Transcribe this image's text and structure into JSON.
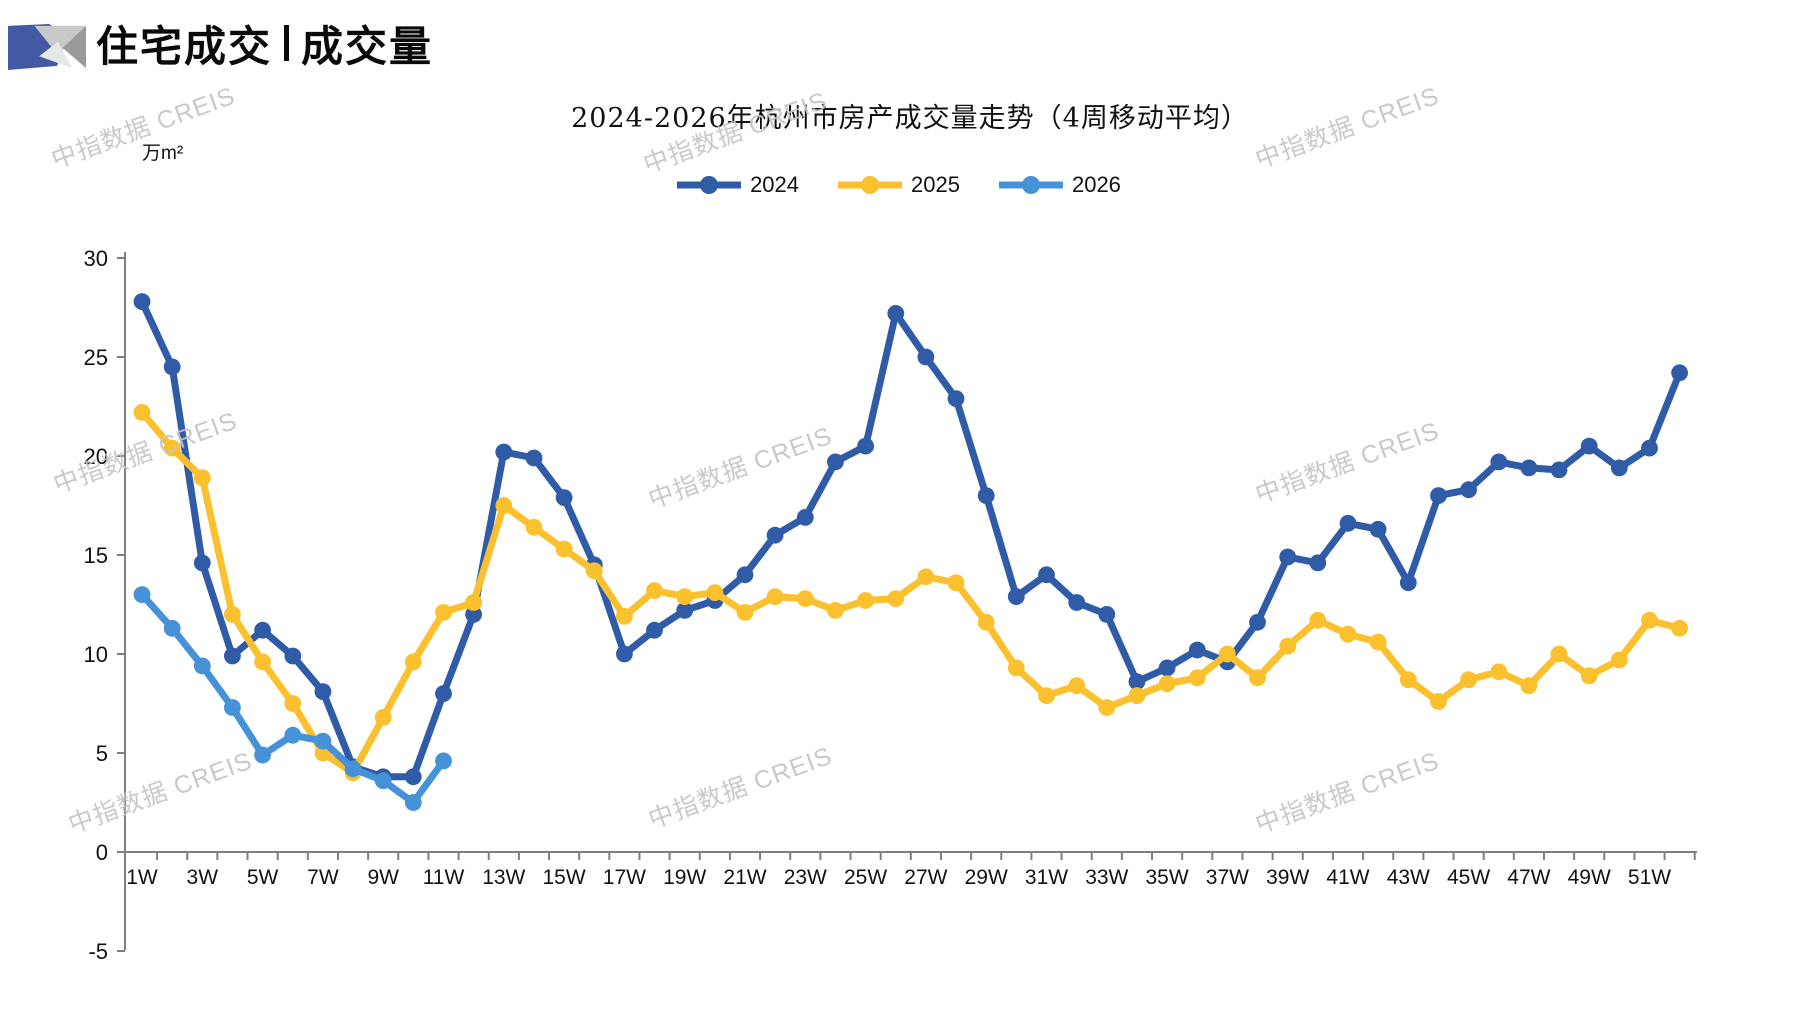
{
  "header": {
    "title_left": "住宅成交",
    "title_right": "成交量",
    "logo_colors": {
      "blue": "#4459A4",
      "gray_light": "#C9C9C9",
      "gray_lighter": "#E7E7E7",
      "gray_dark": "#9A9A9A"
    }
  },
  "watermark_text": "中指数据 CREIS",
  "chart_data": {
    "type": "line",
    "title": "2024-2026年杭州市房产成交量走势（4周移动平均）",
    "unit_label": "万m²",
    "xlabel": "",
    "ylabel": "万m²",
    "ylim": [
      -5,
      30
    ],
    "yticks": [
      "30",
      "25",
      "20",
      "15",
      "10",
      "5",
      "0",
      "-5"
    ],
    "ytick_values": [
      30,
      25,
      20,
      15,
      10,
      5,
      0,
      -5
    ],
    "xticklabels": [
      "1W",
      "3W",
      "5W",
      "7W",
      "9W",
      "11W",
      "13W",
      "15W",
      "17W",
      "19W",
      "21W",
      "23W",
      "25W",
      "27W",
      "29W",
      "31W",
      "33W",
      "35W",
      "37W",
      "39W",
      "41W",
      "43W",
      "45W",
      "47W",
      "49W",
      "51W"
    ],
    "weeks": 52,
    "grid": false,
    "legend_position": "top",
    "series": [
      {
        "name": "2024",
        "color": "#2F5BA7",
        "marker": "circle",
        "values": [
          27.8,
          24.5,
          14.6,
          9.9,
          11.2,
          9.9,
          8.1,
          4.3,
          3.8,
          3.8,
          8.0,
          12.0,
          20.2,
          19.9,
          17.9,
          14.5,
          10.0,
          11.2,
          12.2,
          12.7,
          14.0,
          16.0,
          16.9,
          19.7,
          20.5,
          27.2,
          25.0,
          22.9,
          18.0,
          12.9,
          14.0,
          12.6,
          12.0,
          8.6,
          9.3,
          10.2,
          9.6,
          11.6,
          14.9,
          14.6,
          16.6,
          16.3,
          13.6,
          18.0,
          18.3,
          19.7,
          19.4,
          19.3,
          20.5,
          19.4,
          20.4,
          24.2
        ]
      },
      {
        "name": "2025",
        "color": "#FBC02D",
        "marker": "circle",
        "values": [
          22.2,
          20.4,
          18.9,
          12.0,
          9.6,
          7.5,
          5.0,
          4.0,
          6.8,
          9.6,
          12.1,
          12.6,
          17.5,
          16.4,
          15.3,
          14.2,
          11.9,
          13.2,
          12.9,
          13.1,
          12.1,
          12.9,
          12.8,
          12.2,
          12.7,
          12.8,
          13.9,
          13.6,
          11.6,
          9.3,
          7.9,
          8.4,
          7.3,
          7.9,
          8.5,
          8.8,
          10.0,
          8.8,
          10.4,
          11.7,
          11.0,
          10.6,
          8.7,
          7.6,
          8.7,
          9.1,
          8.4,
          10.0,
          8.9,
          9.7,
          11.7,
          11.3
        ]
      },
      {
        "name": "2026",
        "color": "#4592D8",
        "marker": "circle",
        "values": [
          13.0,
          11.3,
          9.4,
          7.3,
          4.9,
          5.9,
          5.6,
          4.2,
          3.6,
          2.5,
          4.6
        ]
      }
    ]
  }
}
